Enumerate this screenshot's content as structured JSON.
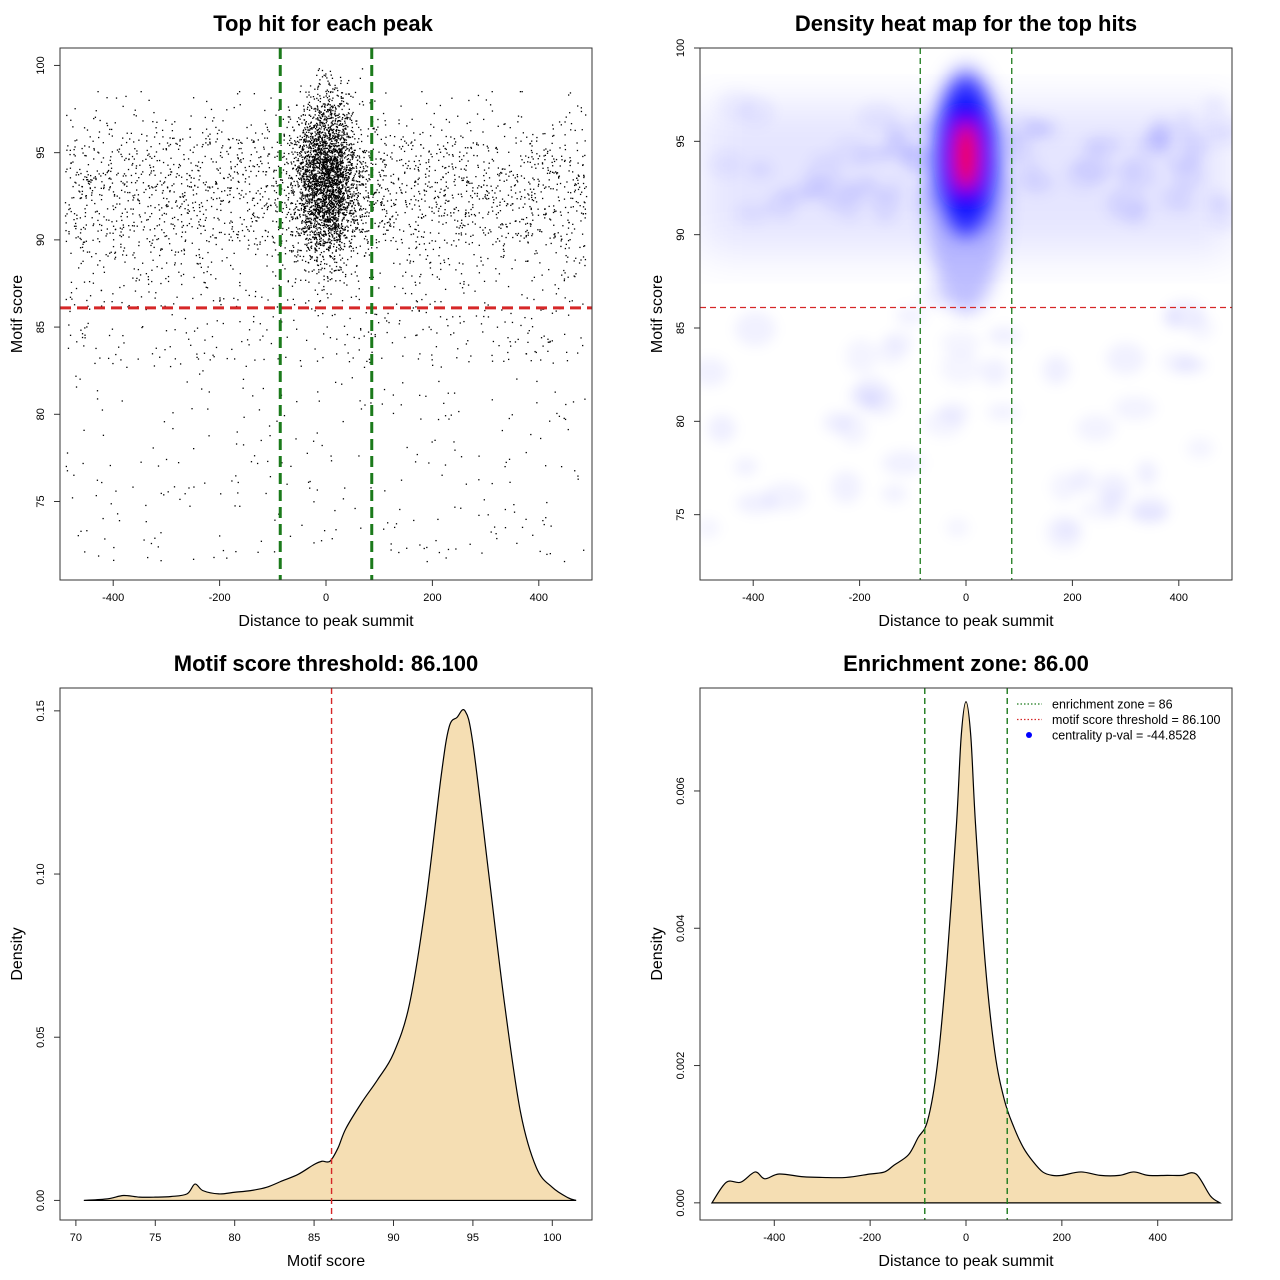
{
  "chart_data": [
    {
      "type": "scatter",
      "title": "Top hit for each peak",
      "xlabel": "Distance to peak summit",
      "ylabel": "Motif score",
      "xlim": [
        -500,
        500
      ],
      "ylim": [
        70.5,
        101
      ],
      "xticks": [
        "-400",
        "-200",
        "0",
        "200",
        "400"
      ],
      "yticks": [
        "75",
        "80",
        "85",
        "90",
        "95",
        "100"
      ],
      "point_color": "#000000",
      "point_count_approx": 6000,
      "distribution": {
        "central_cluster": {
          "x_center": 0,
          "x_spread": 30,
          "y_center": 93.5,
          "y_spread": 2.3
        },
        "background": {
          "x_range": [
            -490,
            490
          ],
          "y_range": [
            71.5,
            98.5
          ],
          "y_mode": 93
        }
      },
      "hlines": [
        {
          "y": 86.1,
          "color": "#d62728",
          "style": "dashed"
        }
      ],
      "vlines": [
        {
          "x": -86,
          "color": "#1b7a1b",
          "style": "dashed"
        },
        {
          "x": 86,
          "color": "#1b7a1b",
          "style": "dashed"
        }
      ]
    },
    {
      "type": "heatmap",
      "title": "Density heat map for the top hits",
      "xlabel": "Distance to peak summit",
      "ylabel": "Motif score",
      "xlim": [
        -500,
        500
      ],
      "ylim": [
        71.5,
        100
      ],
      "xticks": [
        "-400",
        "-200",
        "0",
        "200",
        "400"
      ],
      "yticks": [
        "75",
        "80",
        "85",
        "90",
        "95",
        "100"
      ],
      "colors": [
        "#ffffff",
        "#0000ff",
        "#ff0000"
      ],
      "hotspot": {
        "x": 0,
        "y": 94.2
      },
      "hlines": [
        {
          "y": 86.1,
          "color": "#d62728",
          "style": "dashed"
        }
      ],
      "vlines": [
        {
          "x": -86,
          "color": "#1b7a1b",
          "style": "dashed"
        },
        {
          "x": 86,
          "color": "#1b7a1b",
          "style": "dashed"
        }
      ]
    },
    {
      "type": "area",
      "title": "Motif score threshold: 86.100",
      "xlabel": "Motif score",
      "ylabel": "Density",
      "xlim": [
        69,
        102.5
      ],
      "ylim": [
        -0.006,
        0.157
      ],
      "xticks": [
        "70",
        "75",
        "80",
        "85",
        "90",
        "95",
        "100"
      ],
      "yticks": [
        "0.00",
        "0.05",
        "0.10",
        "0.15"
      ],
      "fill": "#f5deb3",
      "x": [
        70.5,
        72,
        73,
        74,
        75,
        76,
        77,
        77.5,
        78,
        79,
        80,
        81,
        82,
        83,
        84,
        85,
        85.5,
        86,
        86.5,
        87,
        88,
        89,
        90,
        91,
        92,
        93,
        93.5,
        94,
        94.5,
        95,
        96,
        97,
        98,
        99,
        100,
        101,
        101.5
      ],
      "values": [
        0.0,
        0.0005,
        0.0015,
        0.001,
        0.001,
        0.0012,
        0.002,
        0.005,
        0.003,
        0.002,
        0.0025,
        0.003,
        0.004,
        0.006,
        0.008,
        0.011,
        0.012,
        0.012,
        0.016,
        0.022,
        0.03,
        0.037,
        0.045,
        0.06,
        0.09,
        0.13,
        0.145,
        0.148,
        0.15,
        0.14,
        0.1,
        0.06,
        0.027,
        0.01,
        0.004,
        0.0008,
        0.0
      ],
      "vlines": [
        {
          "x": 86.1,
          "color": "#d62728",
          "style": "dashed"
        }
      ]
    },
    {
      "type": "area",
      "title": "Enrichment zone: 86.00",
      "xlabel": "Distance to peak summit",
      "ylabel": "Density",
      "xlim": [
        -555,
        555
      ],
      "ylim": [
        -0.00025,
        0.0075
      ],
      "xticks": [
        "-400",
        "-200",
        "0",
        "200",
        "400"
      ],
      "yticks": [
        "0.000",
        "0.002",
        "0.004",
        "0.006"
      ],
      "fill": "#f5deb3",
      "x": [
        -530,
        -500,
        -470,
        -440,
        -420,
        -390,
        -340,
        -300,
        -250,
        -200,
        -170,
        -150,
        -120,
        -100,
        -80,
        -60,
        -40,
        -20,
        -10,
        0,
        10,
        20,
        40,
        60,
        80,
        100,
        120,
        140,
        160,
        180,
        200,
        240,
        280,
        320,
        350,
        380,
        420,
        450,
        480,
        510,
        530
      ],
      "values": [
        0.0,
        0.0003,
        0.0003,
        0.00045,
        0.00035,
        0.00042,
        0.00038,
        0.00037,
        0.00037,
        0.00042,
        0.00045,
        0.00055,
        0.0007,
        0.00095,
        0.0012,
        0.002,
        0.0035,
        0.0055,
        0.0068,
        0.0073,
        0.0068,
        0.0055,
        0.0035,
        0.0022,
        0.0015,
        0.0011,
        0.0008,
        0.0006,
        0.00045,
        0.0004,
        0.0004,
        0.00045,
        0.0004,
        0.0004,
        0.00045,
        0.0004,
        0.0004,
        0.0004,
        0.00042,
        0.0001,
        0.0
      ],
      "vlines": [
        {
          "x": -86,
          "color": "#1b7a1b",
          "style": "dashed"
        },
        {
          "x": 86,
          "color": "#1b7a1b",
          "style": "dashed"
        }
      ],
      "legend": [
        {
          "label": "enrichment zone = 86",
          "color": "#1b7a1b",
          "style": "dotted"
        },
        {
          "label": "motif score threshold = 86.100",
          "color": "#d62728",
          "style": "dotted"
        },
        {
          "label": "centrality p-val = -44.8528",
          "color": "#0000ff",
          "style": "point"
        }
      ]
    }
  ]
}
